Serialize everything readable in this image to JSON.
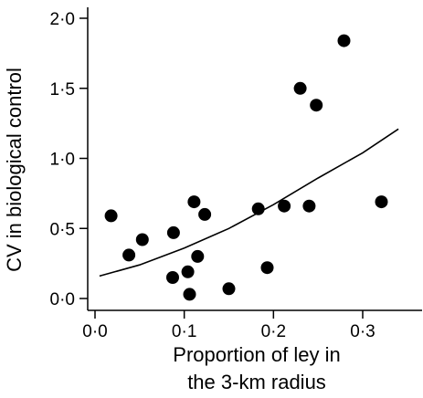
{
  "chart_data": {
    "type": "scatter",
    "title": "",
    "xlabel_lines": [
      "Proportion of ley in",
      "the 3-km radius"
    ],
    "ylabel": "CV in biological control",
    "xlim": [
      -0.01,
      0.35
    ],
    "ylim": [
      -0.05,
      2.08
    ],
    "x_ticks": [
      0.0,
      0.1,
      0.2,
      0.3
    ],
    "x_tick_labels": [
      "0·0",
      "0·1",
      "0·2",
      "0·3"
    ],
    "y_ticks": [
      0.0,
      0.5,
      1.0,
      1.5,
      2.0
    ],
    "y_tick_labels": [
      "0·0",
      "0·5",
      "1·0",
      "1·5",
      "2·0"
    ],
    "points": [
      {
        "x": 0.018,
        "y": 0.59
      },
      {
        "x": 0.038,
        "y": 0.31
      },
      {
        "x": 0.053,
        "y": 0.42
      },
      {
        "x": 0.087,
        "y": 0.15
      },
      {
        "x": 0.088,
        "y": 0.47
      },
      {
        "x": 0.104,
        "y": 0.19
      },
      {
        "x": 0.106,
        "y": 0.03
      },
      {
        "x": 0.111,
        "y": 0.69
      },
      {
        "x": 0.115,
        "y": 0.3
      },
      {
        "x": 0.123,
        "y": 0.6
      },
      {
        "x": 0.15,
        "y": 0.07
      },
      {
        "x": 0.183,
        "y": 0.64
      },
      {
        "x": 0.193,
        "y": 0.22
      },
      {
        "x": 0.212,
        "y": 0.66
      },
      {
        "x": 0.23,
        "y": 1.5
      },
      {
        "x": 0.24,
        "y": 0.66
      },
      {
        "x": 0.248,
        "y": 1.38
      },
      {
        "x": 0.279,
        "y": 1.84
      },
      {
        "x": 0.321,
        "y": 0.69
      }
    ],
    "fit_curve": {
      "x": [
        0.005,
        0.05,
        0.1,
        0.15,
        0.2,
        0.25,
        0.3,
        0.34
      ],
      "y": [
        0.16,
        0.24,
        0.36,
        0.5,
        0.67,
        0.86,
        1.04,
        1.21
      ]
    },
    "marker_color": "#000000",
    "line_color": "#000000"
  }
}
